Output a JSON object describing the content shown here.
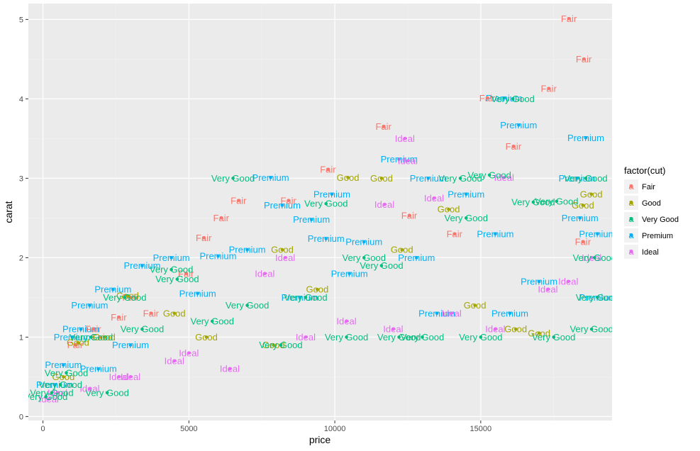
{
  "chart_data": {
    "type": "scatter",
    "title": "",
    "xlabel": "price",
    "ylabel": "carat",
    "xlim": [
      -500,
      19500
    ],
    "ylim": [
      -0.05,
      5.2
    ],
    "x_ticks": [
      0,
      5000,
      10000,
      15000
    ],
    "x_tick_labels": [
      "0",
      "5000",
      "10000",
      "15000"
    ],
    "y_ticks": [
      0,
      1,
      2,
      3,
      4,
      5
    ],
    "y_tick_labels": [
      "0",
      "1",
      "2",
      "3",
      "4",
      "5"
    ],
    "grid": true,
    "background": "#EBEBEB",
    "legend": {
      "title": "factor(cut)",
      "position": "right",
      "entries": [
        {
          "label": "Fair",
          "color": "#F8766D"
        },
        {
          "label": "Good",
          "color": "#A3A500"
        },
        {
          "label": "Very Good",
          "color": "#00BF7D"
        },
        {
          "label": "Premium",
          "color": "#00B0F6"
        },
        {
          "label": "Ideal",
          "color": "#E76BF3"
        }
      ]
    },
    "annotations": "each point is labelled with its cut name",
    "series": [
      {
        "name": "Fair",
        "color": "#F8766D",
        "points": [
          [
            18018,
            5.01
          ],
          [
            18531,
            4.5
          ],
          [
            17329,
            4.13
          ],
          [
            11668,
            3.65
          ],
          [
            15223,
            4.01
          ],
          [
            16119,
            3.4
          ],
          [
            9765,
            3.11
          ],
          [
            6701,
            2.72
          ],
          [
            8410,
            2.72
          ],
          [
            6104,
            2.5
          ],
          [
            5508,
            2.25
          ],
          [
            2988,
            1.5
          ],
          [
            2595,
            1.25
          ],
          [
            1950,
            1.0
          ],
          [
            1100,
            0.9
          ],
          [
            12550,
            2.53
          ],
          [
            4900,
            1.8
          ],
          [
            3700,
            1.3
          ],
          [
            14100,
            2.3
          ],
          [
            18500,
            2.2
          ],
          [
            1720,
            1.1
          ]
        ]
      },
      {
        "name": "Good",
        "color": "#A3A500",
        "points": [
          [
            10450,
            3.01
          ],
          [
            11600,
            3.0
          ],
          [
            13900,
            2.61
          ],
          [
            18787,
            2.8
          ],
          [
            18500,
            2.66
          ],
          [
            12300,
            2.1
          ],
          [
            8200,
            2.1
          ],
          [
            2900,
            1.52
          ],
          [
            16200,
            1.1
          ],
          [
            17000,
            1.05
          ],
          [
            5600,
            1.0
          ],
          [
            2100,
            1.0
          ],
          [
            1200,
            0.93
          ],
          [
            700,
            0.5
          ],
          [
            4500,
            1.3
          ],
          [
            7900,
            0.9
          ],
          [
            9400,
            1.6
          ],
          [
            14800,
            1.4
          ]
        ]
      },
      {
        "name": "Very Good",
        "color": "#00BF7D",
        "points": [
          [
            6512,
            3.0
          ],
          [
            14300,
            3.0
          ],
          [
            16100,
            4.0
          ],
          [
            9700,
            2.68
          ],
          [
            15300,
            3.04
          ],
          [
            16800,
            2.7
          ],
          [
            17600,
            2.71
          ],
          [
            18600,
            3.0
          ],
          [
            14500,
            2.5
          ],
          [
            4600,
            1.73
          ],
          [
            4400,
            1.85
          ],
          [
            2800,
            1.5
          ],
          [
            1650,
            1.0
          ],
          [
            800,
            0.55
          ],
          [
            300,
            0.3
          ],
          [
            2200,
            0.3
          ],
          [
            8150,
            0.9
          ],
          [
            10400,
            1.0
          ],
          [
            12200,
            1.0
          ],
          [
            13000,
            1.0
          ],
          [
            15000,
            1.0
          ],
          [
            17500,
            1.0
          ],
          [
            19000,
            1.5
          ],
          [
            18900,
            2.0
          ],
          [
            11000,
            2.0
          ],
          [
            11600,
            1.9
          ],
          [
            5800,
            1.2
          ],
          [
            3400,
            1.1
          ],
          [
            7000,
            1.4
          ],
          [
            9000,
            1.5
          ],
          [
            100,
            0.25
          ],
          [
            600,
            0.4
          ],
          [
            18800,
            1.1
          ]
        ]
      },
      {
        "name": "Premium",
        "color": "#00B0F6",
        "points": [
          [
            7800,
            3.01
          ],
          [
            12200,
            3.24
          ],
          [
            15800,
            4.01
          ],
          [
            16300,
            3.67
          ],
          [
            18600,
            3.51
          ],
          [
            9900,
            2.8
          ],
          [
            14500,
            2.8
          ],
          [
            8200,
            2.66
          ],
          [
            9200,
            2.48
          ],
          [
            13200,
            3.0
          ],
          [
            18300,
            3.0
          ],
          [
            9700,
            2.24
          ],
          [
            6000,
            2.02
          ],
          [
            4400,
            2.0
          ],
          [
            3400,
            1.9
          ],
          [
            2400,
            1.6
          ],
          [
            1600,
            1.4
          ],
          [
            1300,
            1.1
          ],
          [
            700,
            0.65
          ],
          [
            400,
            0.4
          ],
          [
            1000,
            1.0
          ],
          [
            11000,
            2.2
          ],
          [
            12800,
            2.0
          ],
          [
            17000,
            1.7
          ],
          [
            19000,
            1.5
          ],
          [
            19000,
            2.3
          ],
          [
            15500,
            2.3
          ],
          [
            7000,
            2.1
          ],
          [
            5300,
            1.55
          ],
          [
            3000,
            0.9
          ],
          [
            1900,
            0.6
          ],
          [
            8800,
            1.5
          ],
          [
            10500,
            1.8
          ],
          [
            13500,
            1.3
          ],
          [
            16000,
            1.3
          ],
          [
            18400,
            2.5
          ]
        ]
      },
      {
        "name": "Ideal",
        "color": "#E76BF3",
        "points": [
          [
            12400,
            3.5
          ],
          [
            12500,
            3.22
          ],
          [
            13400,
            2.75
          ],
          [
            11700,
            2.67
          ],
          [
            8300,
            2.0
          ],
          [
            15800,
            3.01
          ],
          [
            5000,
            0.8
          ],
          [
            6400,
            0.6
          ],
          [
            4500,
            0.7
          ],
          [
            2600,
            0.5
          ],
          [
            1600,
            0.35
          ],
          [
            500,
            0.3
          ],
          [
            200,
            0.22
          ],
          [
            10400,
            1.2
          ],
          [
            12000,
            1.1
          ],
          [
            15500,
            1.1
          ],
          [
            17300,
            1.6
          ],
          [
            18000,
            1.7
          ],
          [
            18800,
            2.0
          ],
          [
            9000,
            1.0
          ],
          [
            3000,
            0.5
          ],
          [
            7600,
            1.8
          ],
          [
            14000,
            1.3
          ]
        ]
      }
    ]
  }
}
